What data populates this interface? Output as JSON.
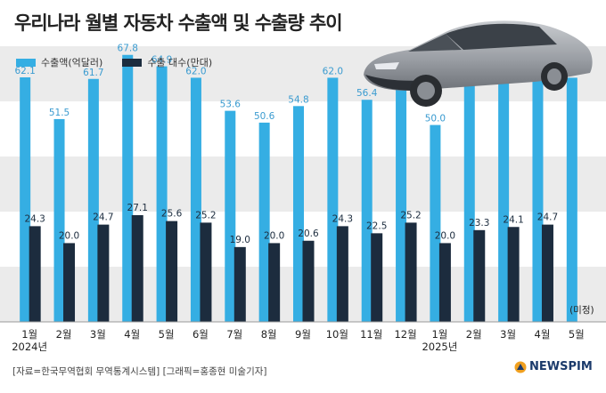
{
  "header": {
    "title": "우리나라 월별 자동차 수출액 및 수출량 추이"
  },
  "legend": {
    "export_value_label": "수출액(억달러)",
    "export_units_label": "수출 대수(만대)"
  },
  "colors": {
    "export_value": "#35aee3",
    "export_units": "#1c2c3e",
    "band_gray": "#ebebeb"
  },
  "chart_data": {
    "type": "bar",
    "categories": [
      "1월",
      "2월",
      "3월",
      "4월",
      "5월",
      "6월",
      "7월",
      "8월",
      "9월",
      "10월",
      "11월",
      "12월",
      "1월",
      "2월",
      "3월",
      "4월",
      "5월"
    ],
    "year_labels": [
      {
        "index": 0,
        "label": "2024년"
      },
      {
        "index": 12,
        "label": "2025년"
      }
    ],
    "series": [
      {
        "name": "수출액(억달러)",
        "values": [
          62.1,
          51.5,
          61.7,
          67.8,
          64.9,
          62.0,
          53.6,
          50.6,
          54.8,
          62.0,
          56.4,
          60.4,
          50.0,
          60.7,
          62.3,
          65.3,
          62.0
        ]
      },
      {
        "name": "수출 대수(만대)",
        "values": [
          24.3,
          20.0,
          24.7,
          27.1,
          25.6,
          25.2,
          19.0,
          20.0,
          20.6,
          24.3,
          22.5,
          25.2,
          20.0,
          23.3,
          24.1,
          24.7,
          null
        ]
      }
    ],
    "annotations": [
      {
        "index": 16,
        "series": 1,
        "text": "(미정)"
      }
    ],
    "ylim": [
      0,
      70
    ],
    "grid": "alternating horizontal bands"
  },
  "source": {
    "text": "[자료=한국무역협회 무역통계시스템] [그래픽=홍종현 미술기자]"
  },
  "brand": {
    "name": "NEWSPIM"
  }
}
